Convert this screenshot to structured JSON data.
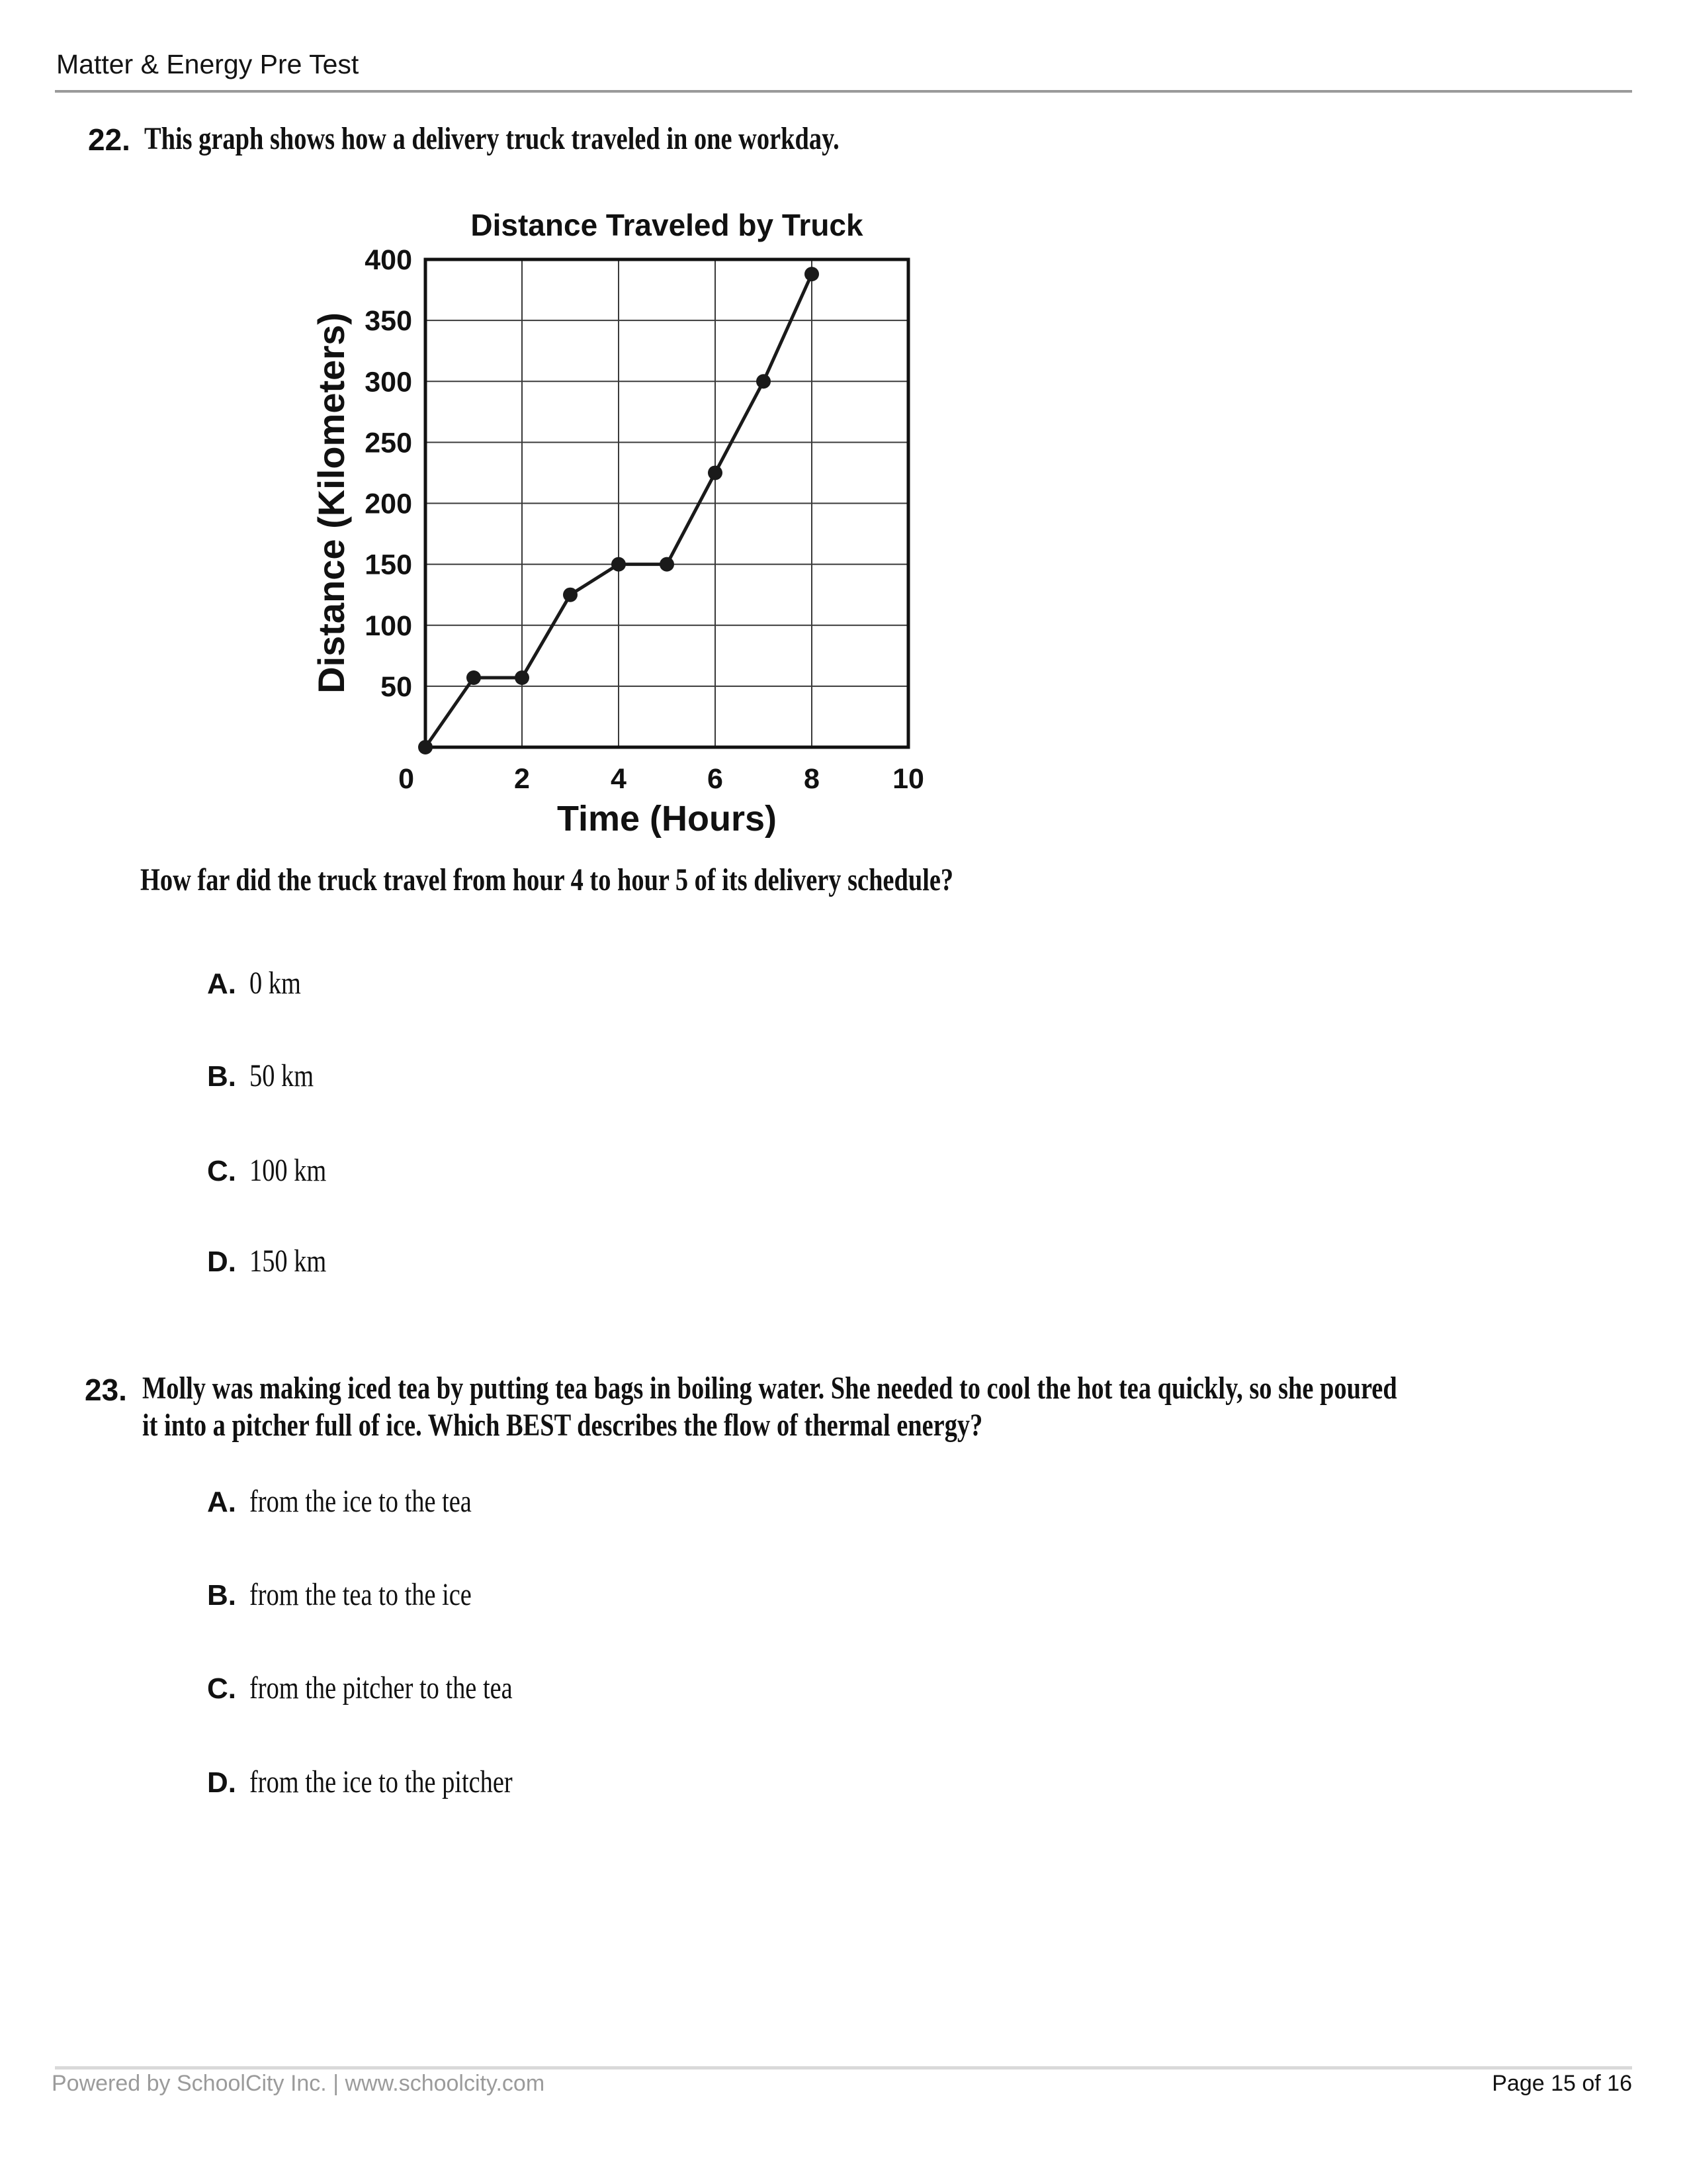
{
  "header": {
    "title": "Matter & Energy Pre Test"
  },
  "questions": [
    {
      "number": "22.",
      "prompt": "This graph shows how a delivery truck traveled in one workday.",
      "sub_prompt": "How far did the truck travel from hour 4 to hour 5 of its delivery schedule?",
      "options": [
        {
          "label": "A.",
          "text": "0 km"
        },
        {
          "label": "B.",
          "text": "50 km"
        },
        {
          "label": "C.",
          "text": "100 km"
        },
        {
          "label": "D.",
          "text": "150 km"
        }
      ]
    },
    {
      "number": "23.",
      "prompt_lines": [
        "Molly was making iced tea by putting tea bags in boiling water. She needed to cool the hot tea quickly, so she poured",
        "it into a pitcher full of ice. Which BEST describes the flow of thermal energy?"
      ],
      "options": [
        {
          "label": "A.",
          "text": "from the ice to the tea"
        },
        {
          "label": "B.",
          "text": "from the tea to the ice"
        },
        {
          "label": "C.",
          "text": "from the pitcher to the tea"
        },
        {
          "label": "D.",
          "text": "from the ice to the pitcher"
        }
      ]
    }
  ],
  "chart_data": {
    "type": "line",
    "title": "Distance Traveled by Truck",
    "xlabel": "Time (Hours)",
    "ylabel": "Distance (Kilometers)",
    "x": [
      0,
      1,
      2,
      3,
      4,
      5,
      6,
      7,
      8
    ],
    "y": [
      0,
      57,
      57,
      125,
      150,
      150,
      225,
      300,
      388
    ],
    "xlim": [
      0,
      10
    ],
    "ylim": [
      0,
      400
    ],
    "x_ticks": [
      2,
      4,
      6,
      8,
      10
    ],
    "y_ticks": [
      0,
      50,
      100,
      150,
      200,
      250,
      300,
      350,
      400
    ],
    "grid": true,
    "x_grid_step": 2,
    "y_grid_step": 50,
    "origin_label": "0",
    "line_color": "#1a1a1a"
  },
  "footer": {
    "powered_by": "Powered by SchoolCity Inc. | www.schoolcity.com",
    "page_info": "Page 15 of 16"
  }
}
